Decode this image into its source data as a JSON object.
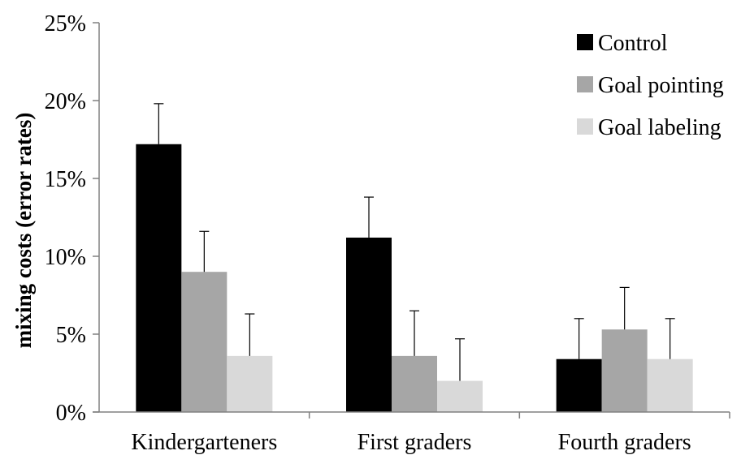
{
  "chart_data": {
    "type": "bar",
    "title": "",
    "xlabel": "",
    "ylabel": "mixing costs (error rates)",
    "ylim": [
      0,
      25
    ],
    "y_ticks": [
      0,
      5,
      10,
      15,
      20,
      25
    ],
    "y_tick_labels": [
      "0%",
      "5%",
      "10%",
      "15%",
      "20%",
      "25%"
    ],
    "categories": [
      "Kindergarteners",
      "First graders",
      "Fourth graders"
    ],
    "series": [
      {
        "name": "Control",
        "color": "#000000",
        "values": [
          17.2,
          11.2,
          3.4
        ],
        "errors": [
          2.6,
          2.6,
          2.6
        ]
      },
      {
        "name": "Goal pointing",
        "color": "#a6a6a6",
        "values": [
          9.0,
          3.6,
          5.3
        ],
        "errors": [
          2.6,
          2.9,
          2.7
        ]
      },
      {
        "name": "Goal labeling",
        "color": "#d9d9d9",
        "values": [
          3.6,
          2.0,
          3.4
        ],
        "errors": [
          2.7,
          2.7,
          2.6
        ]
      }
    ],
    "legend_position": "top-right",
    "grid": false
  }
}
